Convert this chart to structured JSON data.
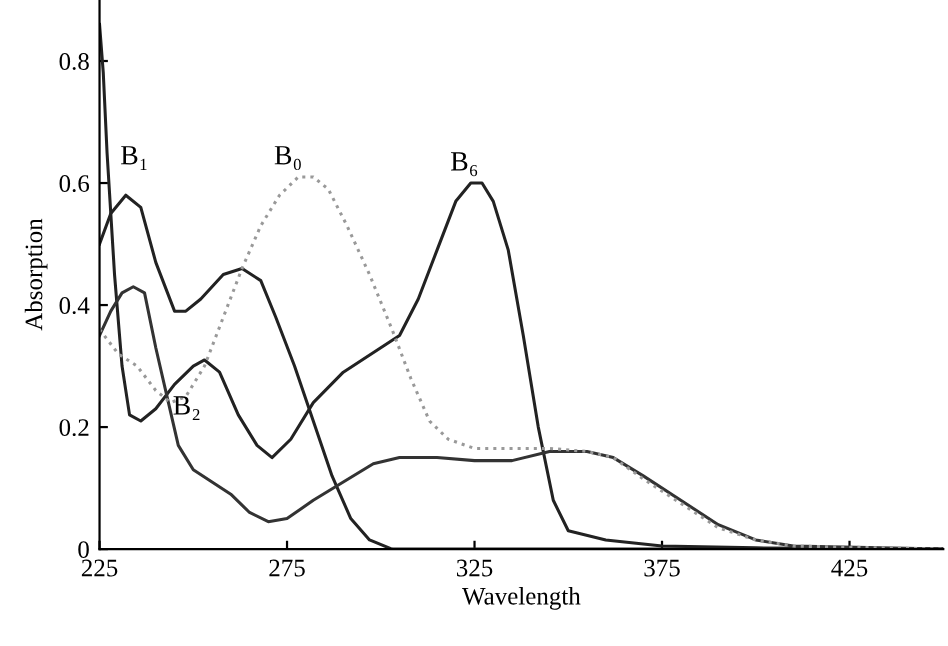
{
  "chart_data": {
    "type": "line",
    "xlabel": "Wavelength",
    "ylabel": "Absorption",
    "xlim": [
      225,
      450
    ],
    "ylim": [
      0,
      0.9
    ],
    "xticks": [
      225,
      275,
      325,
      375,
      425
    ],
    "yticks": [
      {
        "value": 0,
        "label": "0"
      },
      0.2,
      0.4,
      0.6,
      0.8
    ],
    "grid": false,
    "marker": "none",
    "series": [
      {
        "color": "#222222",
        "line_style": "solid",
        "x": [
          225,
          226,
          227,
          229,
          231,
          233,
          236,
          240,
          245,
          250,
          253,
          257,
          262,
          267,
          271,
          276,
          282,
          290,
          300,
          305,
          310,
          315,
          320,
          324,
          327,
          330,
          334,
          338,
          342,
          346,
          350,
          360,
          375,
          400,
          450
        ],
        "values": [
          0.86,
          0.78,
          0.65,
          0.45,
          0.3,
          0.22,
          0.21,
          0.23,
          0.27,
          0.3,
          0.31,
          0.29,
          0.22,
          0.17,
          0.15,
          0.18,
          0.24,
          0.29,
          0.33,
          0.35,
          0.41,
          0.49,
          0.57,
          0.6,
          0.6,
          0.57,
          0.49,
          0.35,
          0.2,
          0.08,
          0.03,
          0.015,
          0.005,
          0.002,
          0
        ]
      },
      {
        "color": "#222222",
        "line_style": "solid",
        "x": [
          225,
          228,
          232,
          236,
          240,
          245,
          248,
          252,
          258,
          263,
          268,
          272,
          277,
          282,
          287,
          292,
          297,
          303,
          450
        ],
        "values": [
          0.5,
          0.55,
          0.58,
          0.56,
          0.47,
          0.39,
          0.39,
          0.41,
          0.45,
          0.46,
          0.44,
          0.38,
          0.3,
          0.21,
          0.12,
          0.05,
          0.015,
          0,
          0
        ]
      },
      {
        "color": "#333333",
        "line_style": "solid",
        "x": [
          225,
          228,
          231,
          234,
          237,
          240,
          243,
          246,
          250,
          255,
          260,
          265,
          270,
          275,
          282,
          290,
          298,
          305,
          315,
          325,
          335,
          345,
          355,
          362,
          370,
          380,
          390,
          400,
          410,
          450
        ],
        "values": [
          0.35,
          0.39,
          0.42,
          0.43,
          0.42,
          0.33,
          0.25,
          0.17,
          0.13,
          0.11,
          0.09,
          0.06,
          0.045,
          0.05,
          0.08,
          0.11,
          0.14,
          0.15,
          0.15,
          0.145,
          0.145,
          0.16,
          0.16,
          0.15,
          0.12,
          0.08,
          0.04,
          0.015,
          0.005,
          0
        ]
      },
      {
        "color": "#999999",
        "line_style": "dotted",
        "x": [
          225,
          230,
          235,
          240,
          244,
          248,
          253,
          258,
          263,
          268,
          273,
          278,
          282,
          286,
          291,
          297,
          303,
          308,
          313,
          318,
          325,
          335,
          345,
          355,
          362,
          370,
          380,
          390,
          400,
          410,
          450
        ],
        "values": [
          0.36,
          0.32,
          0.3,
          0.26,
          0.24,
          0.25,
          0.3,
          0.38,
          0.46,
          0.53,
          0.58,
          0.61,
          0.61,
          0.59,
          0.53,
          0.45,
          0.36,
          0.28,
          0.21,
          0.18,
          0.165,
          0.165,
          0.165,
          0.16,
          0.15,
          0.115,
          0.075,
          0.035,
          0.015,
          0.005,
          0
        ]
      }
    ],
    "annotations": [
      {
        "text": "B₁",
        "x": 232,
        "y": 0.58
      },
      {
        "text": "B₀",
        "x": 273,
        "y": 0.58
      },
      {
        "text": "B₆",
        "x": 320,
        "y": 0.57
      },
      {
        "text": "B₂",
        "x": 246,
        "y": 0.17
      }
    ]
  }
}
